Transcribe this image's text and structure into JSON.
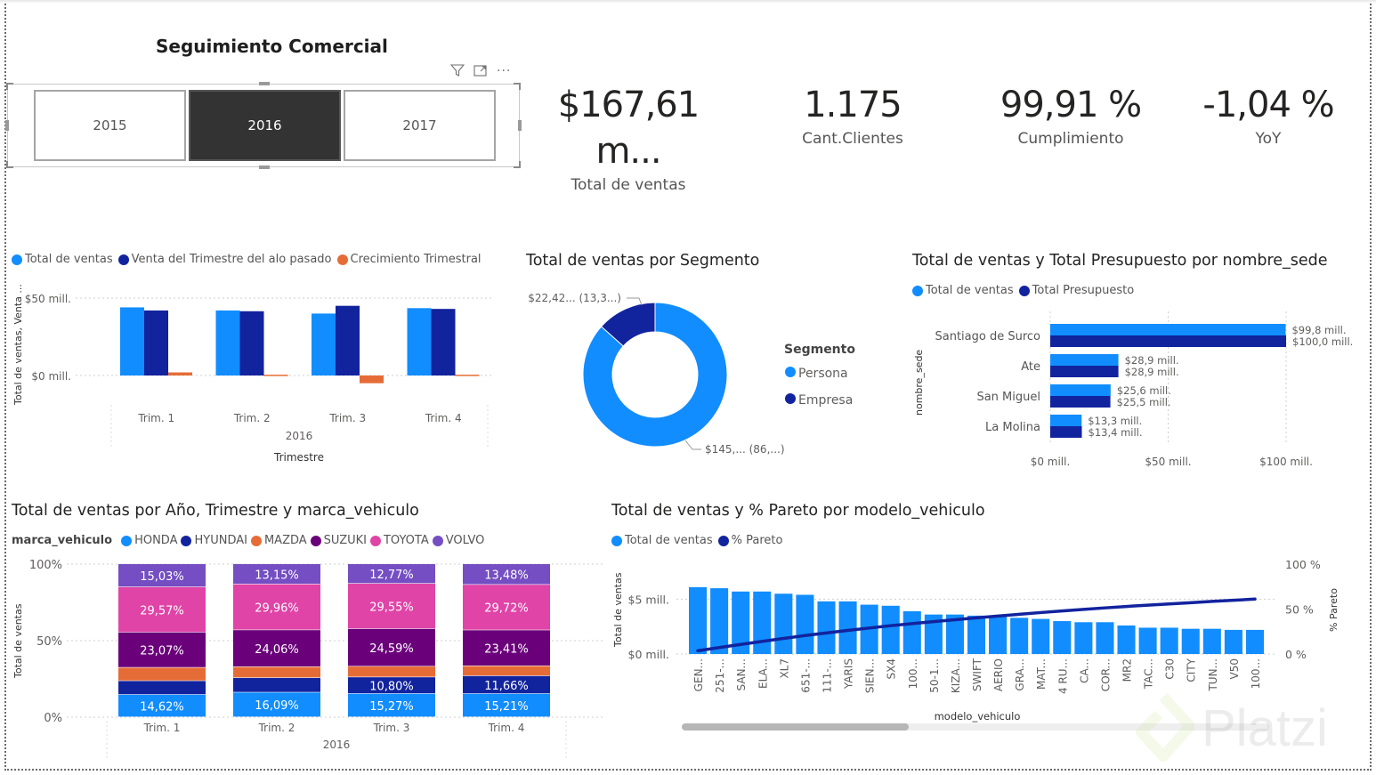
{
  "page": {
    "title": "Seguimiento Comercial",
    "watermark": "Platzi"
  },
  "slicer": {
    "icons": [
      "filter-icon",
      "focus-mode-icon",
      "more-options-icon"
    ],
    "options": [
      {
        "label": "2015",
        "selected": false
      },
      {
        "label": "2016",
        "selected": true
      },
      {
        "label": "2017",
        "selected": false
      }
    ]
  },
  "kpis": [
    {
      "value": "$167,61 m...",
      "label": "Total de ventas"
    },
    {
      "value": "1.175",
      "label": "Cant.Clientes"
    },
    {
      "value": "99,91 %",
      "label": "Cumplimiento"
    },
    {
      "value": "-1,04 %",
      "label": "YoY"
    }
  ],
  "colors": {
    "light_blue": "#118DFF",
    "dark_blue": "#12239E",
    "orange": "#E66C37",
    "purple_dark": "#6B007B",
    "pink": "#E044A7",
    "violet": "#744EC2",
    "grid": "#cfcfcf",
    "text_gray": "#605e5c"
  },
  "chart_data": [
    {
      "id": "quarterly",
      "type": "bar",
      "title": "",
      "legend": [
        "Total de ventas",
        "Venta del Trimestre del alo pasado",
        "Crecimiento Trimestral"
      ],
      "categories": [
        "Trim. 1",
        "Trim. 2",
        "Trim. 3",
        "Trim. 4"
      ],
      "group_label": "2016",
      "xlabel": "Trimestre",
      "ylabel": "Total de ventas, Venta ...",
      "yticks": [
        "$0 mill.",
        "$50 mill."
      ],
      "ylim": [
        -10,
        50
      ],
      "series": [
        {
          "name": "Total de ventas",
          "values": [
            44.0,
            42.0,
            40.0,
            43.5
          ]
        },
        {
          "name": "Venta del Trimestre del alo pasado",
          "values": [
            42.0,
            41.5,
            45.0,
            43.0
          ]
        },
        {
          "name": "Crecimiento Trimestral",
          "values": [
            2.0,
            0.5,
            -5.0,
            0.5
          ]
        }
      ]
    },
    {
      "id": "segment",
      "type": "pie",
      "title": "Total de ventas por Segmento",
      "legend_title": "Segmento",
      "labels": [
        "Persona",
        "Empresa"
      ],
      "values": [
        145.19,
        22.42
      ],
      "percent": [
        86.6,
        13.4
      ],
      "data_labels": [
        "$145,... (86,...)",
        "$22,42... (13,3...)"
      ]
    },
    {
      "id": "sede",
      "type": "bar",
      "orientation": "horizontal",
      "title": "Total de ventas y Total Presupuesto por nombre_sede",
      "legend": [
        "Total de ventas",
        "Total Presupuesto"
      ],
      "ylabel": "nombre_sede",
      "categories": [
        "Santiago de Surco",
        "Ate",
        "San Miguel",
        "La Molina"
      ],
      "xticks": [
        "$0 mill.",
        "$50 mill.",
        "$100 mill."
      ],
      "xlim": [
        0,
        100
      ],
      "series": [
        {
          "name": "Total de ventas",
          "values": [
            99.8,
            28.9,
            25.6,
            13.3
          ],
          "labels": [
            "$99,8 mill.",
            "$28,9 mill.",
            "$25,6 mill.",
            "$13,3 mill."
          ]
        },
        {
          "name": "Total Presupuesto",
          "values": [
            100.0,
            28.9,
            25.5,
            13.4
          ],
          "labels": [
            "$100,0 mill.",
            "$28,9 mill.",
            "$25,5 mill.",
            "$13,4 mill."
          ]
        }
      ]
    },
    {
      "id": "brand",
      "type": "bar",
      "stacked": "100%",
      "title": "Total de ventas por Año, Trimestre y marca_vehiculo",
      "legend_title": "marca_vehiculo",
      "legend": [
        "HONDA",
        "HYUNDAI",
        "MAZDA",
        "SUZUKI",
        "TOYOTA",
        "VOLVO"
      ],
      "categories": [
        "Trim. 1",
        "Trim. 2",
        "Trim. 3",
        "Trim. 4"
      ],
      "group_label": "2016",
      "ylabel": "Total de ventas",
      "yticks": [
        "0%",
        "50%",
        "100%"
      ],
      "series": [
        {
          "name": "HONDA",
          "values": [
            14.62,
            16.09,
            15.27,
            15.21
          ],
          "labels": [
            "14,62%",
            "16,09%",
            "15,27%",
            "15,21%"
          ]
        },
        {
          "name": "HYUNDAI",
          "values": [
            9.0,
            9.5,
            10.8,
            11.66
          ],
          "labels": [
            "",
            "",
            "10,80%",
            "11,66%"
          ]
        },
        {
          "name": "MAZDA",
          "values": [
            8.71,
            7.18,
            7.02,
            6.52
          ],
          "labels": [
            "",
            "",
            "",
            ""
          ]
        },
        {
          "name": "SUZUKI",
          "values": [
            23.07,
            24.06,
            24.59,
            23.41
          ],
          "labels": [
            "23,07%",
            "24,06%",
            "24,59%",
            "23,41%"
          ]
        },
        {
          "name": "TOYOTA",
          "values": [
            29.57,
            29.96,
            29.55,
            29.72
          ],
          "labels": [
            "29,57%",
            "29,96%",
            "29,55%",
            "29,72%"
          ]
        },
        {
          "name": "VOLVO",
          "values": [
            15.03,
            13.15,
            12.77,
            13.48
          ],
          "labels": [
            "15,03%",
            "13,15%",
            "12,77%",
            "13,48%"
          ]
        }
      ]
    },
    {
      "id": "pareto",
      "type": "bar",
      "combo": "line",
      "title": "Total de ventas y % Pareto por modelo_vehiculo",
      "legend": [
        "Total de ventas",
        "% Pareto"
      ],
      "xlabel": "modelo_vehiculo",
      "ylabel": "Total de ventas",
      "y2label": "% Pareto",
      "yticks": [
        "$0 mill.",
        "$5 mill."
      ],
      "y2ticks": [
        "0 %",
        "50 %",
        "100 %"
      ],
      "ylim": [
        0,
        8.2
      ],
      "y2lim": [
        0,
        100
      ],
      "categories": [
        "GEN...",
        "251-...",
        "SAN...",
        "ELA...",
        "XL7",
        "651-...",
        "111-...",
        "YARIS",
        "SIEN...",
        "SX4",
        "100...",
        "50-1...",
        "KIZA...",
        "SWIFT",
        "AERIO",
        "GRA...",
        "MAT...",
        "4 RU...",
        "CA...",
        "COR...",
        "MR2",
        "TAC...",
        "C30",
        "CITY",
        "TUN...",
        "V50",
        "100..."
      ],
      "series": [
        {
          "name": "Total de ventas",
          "values": [
            6.1,
            6.0,
            5.7,
            5.7,
            5.5,
            5.4,
            4.8,
            4.8,
            4.5,
            4.4,
            3.9,
            3.6,
            3.6,
            3.5,
            3.4,
            3.3,
            3.2,
            3.0,
            2.9,
            2.9,
            2.6,
            2.4,
            2.4,
            2.3,
            2.3,
            2.2,
            2.2
          ]
        },
        {
          "name": "% Pareto",
          "values": [
            3.6,
            7.2,
            10.6,
            14.0,
            17.3,
            20.5,
            23.4,
            26.2,
            28.9,
            31.5,
            33.8,
            36.0,
            38.1,
            40.2,
            42.2,
            44.2,
            46.1,
            47.9,
            49.6,
            51.3,
            52.9,
            54.3,
            55.7,
            57.1,
            58.5,
            59.8,
            61.1
          ]
        }
      ]
    }
  ]
}
